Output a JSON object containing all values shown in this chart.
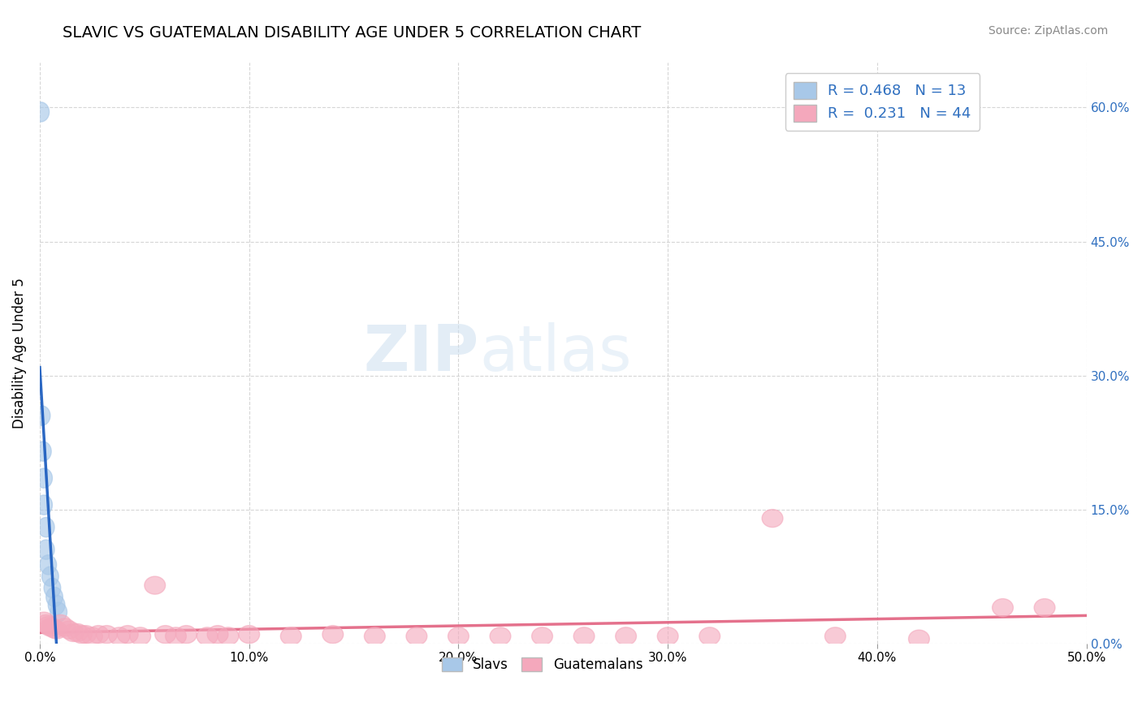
{
  "title": "SLAVIC VS GUATEMALAN DISABILITY AGE UNDER 5 CORRELATION CHART",
  "source": "Source: ZipAtlas.com",
  "ylabel": "Disability Age Under 5",
  "xlim": [
    0.0,
    0.5
  ],
  "ylim": [
    0.0,
    0.65
  ],
  "legend_blue_r": "0.468",
  "legend_blue_n": "13",
  "legend_pink_r": "0.231",
  "legend_pink_n": "44",
  "blue_color": "#a8c8e8",
  "pink_color": "#f4a8bc",
  "trend_blue": "#2060c0",
  "trend_blue_dash": "#80a8e0",
  "trend_pink": "#e05878",
  "slavs_x": [
    0.0005,
    0.001,
    0.0015,
    0.002,
    0.002,
    0.003,
    0.003,
    0.004,
    0.005,
    0.006,
    0.007,
    0.008,
    0.009
  ],
  "slavs_y": [
    0.595,
    0.255,
    0.215,
    0.185,
    0.155,
    0.13,
    0.105,
    0.088,
    0.075,
    0.062,
    0.052,
    0.043,
    0.035
  ],
  "guatemalans_x": [
    0.002,
    0.003,
    0.004,
    0.005,
    0.006,
    0.007,
    0.008,
    0.01,
    0.012,
    0.014,
    0.016,
    0.018,
    0.02,
    0.022,
    0.025,
    0.028,
    0.032,
    0.038,
    0.042,
    0.048,
    0.055,
    0.06,
    0.065,
    0.07,
    0.08,
    0.085,
    0.09,
    0.1,
    0.12,
    0.14,
    0.16,
    0.18,
    0.2,
    0.22,
    0.24,
    0.26,
    0.28,
    0.3,
    0.32,
    0.35,
    0.38,
    0.42,
    0.46,
    0.48
  ],
  "guatemalans_y": [
    0.025,
    0.022,
    0.02,
    0.018,
    0.018,
    0.016,
    0.015,
    0.022,
    0.018,
    0.015,
    0.012,
    0.012,
    0.01,
    0.01,
    0.008,
    0.01,
    0.01,
    0.008,
    0.01,
    0.008,
    0.065,
    0.01,
    0.008,
    0.01,
    0.008,
    0.01,
    0.008,
    0.01,
    0.008,
    0.01,
    0.008,
    0.008,
    0.008,
    0.008,
    0.008,
    0.008,
    0.008,
    0.008,
    0.008,
    0.14,
    0.008,
    0.005,
    0.04,
    0.04
  ]
}
